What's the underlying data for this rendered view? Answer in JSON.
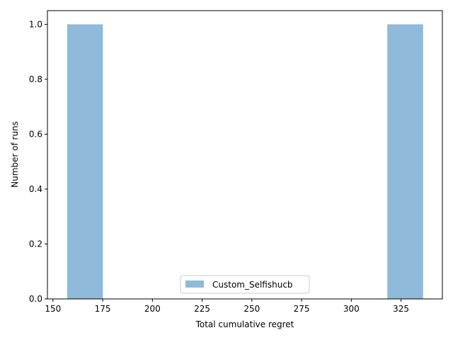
{
  "chart_data": {
    "type": "bar",
    "title": "",
    "xlabel": "Total cumulative regret",
    "ylabel": "Number of runs",
    "xlim": [
      147.2,
      345.8
    ],
    "ylim": [
      0,
      1.05
    ],
    "xticks": [
      "150",
      "175",
      "200",
      "225",
      "250",
      "275",
      "300",
      "325"
    ],
    "yticks": [
      "0.0",
      "0.2",
      "0.4",
      "0.6",
      "0.8",
      "1.0"
    ],
    "series": [
      {
        "name": "Custom_Selfishucb",
        "color": "#8fbad9",
        "bins": [
          {
            "x0": 157.1,
            "x1": 175.1,
            "count": 1
          },
          {
            "x0": 318.1,
            "x1": 336.1,
            "count": 1
          }
        ]
      }
    ],
    "legend_position": "lower center",
    "grid": false
  }
}
